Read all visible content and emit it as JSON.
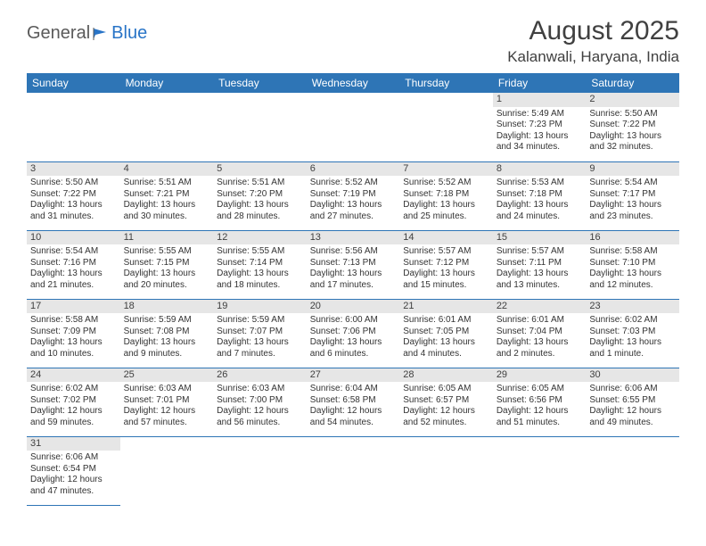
{
  "logo": {
    "part1": "General",
    "part2": "Blue"
  },
  "title": "August 2025",
  "location": "Kalanwali, Haryana, India",
  "colors": {
    "header_bg": "#2e75b6",
    "header_text": "#ffffff",
    "daynum_bg": "#e6e6e6",
    "text": "#333333",
    "logo_gray": "#5a5a5a",
    "logo_blue": "#2874c7",
    "border": "#2e75b6",
    "page_bg": "#ffffff"
  },
  "typography": {
    "title_fontsize": 30,
    "location_fontsize": 17,
    "header_fontsize": 12,
    "cell_fontsize": 10
  },
  "weekdays": [
    "Sunday",
    "Monday",
    "Tuesday",
    "Wednesday",
    "Thursday",
    "Friday",
    "Saturday"
  ],
  "weeks": [
    [
      null,
      null,
      null,
      null,
      null,
      {
        "n": "1",
        "sr": "5:49 AM",
        "ss": "7:23 PM",
        "dl": "13 hours and 34 minutes."
      },
      {
        "n": "2",
        "sr": "5:50 AM",
        "ss": "7:22 PM",
        "dl": "13 hours and 32 minutes."
      }
    ],
    [
      {
        "n": "3",
        "sr": "5:50 AM",
        "ss": "7:22 PM",
        "dl": "13 hours and 31 minutes."
      },
      {
        "n": "4",
        "sr": "5:51 AM",
        "ss": "7:21 PM",
        "dl": "13 hours and 30 minutes."
      },
      {
        "n": "5",
        "sr": "5:51 AM",
        "ss": "7:20 PM",
        "dl": "13 hours and 28 minutes."
      },
      {
        "n": "6",
        "sr": "5:52 AM",
        "ss": "7:19 PM",
        "dl": "13 hours and 27 minutes."
      },
      {
        "n": "7",
        "sr": "5:52 AM",
        "ss": "7:18 PM",
        "dl": "13 hours and 25 minutes."
      },
      {
        "n": "8",
        "sr": "5:53 AM",
        "ss": "7:18 PM",
        "dl": "13 hours and 24 minutes."
      },
      {
        "n": "9",
        "sr": "5:54 AM",
        "ss": "7:17 PM",
        "dl": "13 hours and 23 minutes."
      }
    ],
    [
      {
        "n": "10",
        "sr": "5:54 AM",
        "ss": "7:16 PM",
        "dl": "13 hours and 21 minutes."
      },
      {
        "n": "11",
        "sr": "5:55 AM",
        "ss": "7:15 PM",
        "dl": "13 hours and 20 minutes."
      },
      {
        "n": "12",
        "sr": "5:55 AM",
        "ss": "7:14 PM",
        "dl": "13 hours and 18 minutes."
      },
      {
        "n": "13",
        "sr": "5:56 AM",
        "ss": "7:13 PM",
        "dl": "13 hours and 17 minutes."
      },
      {
        "n": "14",
        "sr": "5:57 AM",
        "ss": "7:12 PM",
        "dl": "13 hours and 15 minutes."
      },
      {
        "n": "15",
        "sr": "5:57 AM",
        "ss": "7:11 PM",
        "dl": "13 hours and 13 minutes."
      },
      {
        "n": "16",
        "sr": "5:58 AM",
        "ss": "7:10 PM",
        "dl": "13 hours and 12 minutes."
      }
    ],
    [
      {
        "n": "17",
        "sr": "5:58 AM",
        "ss": "7:09 PM",
        "dl": "13 hours and 10 minutes."
      },
      {
        "n": "18",
        "sr": "5:59 AM",
        "ss": "7:08 PM",
        "dl": "13 hours and 9 minutes."
      },
      {
        "n": "19",
        "sr": "5:59 AM",
        "ss": "7:07 PM",
        "dl": "13 hours and 7 minutes."
      },
      {
        "n": "20",
        "sr": "6:00 AM",
        "ss": "7:06 PM",
        "dl": "13 hours and 6 minutes."
      },
      {
        "n": "21",
        "sr": "6:01 AM",
        "ss": "7:05 PM",
        "dl": "13 hours and 4 minutes."
      },
      {
        "n": "22",
        "sr": "6:01 AM",
        "ss": "7:04 PM",
        "dl": "13 hours and 2 minutes."
      },
      {
        "n": "23",
        "sr": "6:02 AM",
        "ss": "7:03 PM",
        "dl": "13 hours and 1 minute."
      }
    ],
    [
      {
        "n": "24",
        "sr": "6:02 AM",
        "ss": "7:02 PM",
        "dl": "12 hours and 59 minutes."
      },
      {
        "n": "25",
        "sr": "6:03 AM",
        "ss": "7:01 PM",
        "dl": "12 hours and 57 minutes."
      },
      {
        "n": "26",
        "sr": "6:03 AM",
        "ss": "7:00 PM",
        "dl": "12 hours and 56 minutes."
      },
      {
        "n": "27",
        "sr": "6:04 AM",
        "ss": "6:58 PM",
        "dl": "12 hours and 54 minutes."
      },
      {
        "n": "28",
        "sr": "6:05 AM",
        "ss": "6:57 PM",
        "dl": "12 hours and 52 minutes."
      },
      {
        "n": "29",
        "sr": "6:05 AM",
        "ss": "6:56 PM",
        "dl": "12 hours and 51 minutes."
      },
      {
        "n": "30",
        "sr": "6:06 AM",
        "ss": "6:55 PM",
        "dl": "12 hours and 49 minutes."
      }
    ],
    [
      {
        "n": "31",
        "sr": "6:06 AM",
        "ss": "6:54 PM",
        "dl": "12 hours and 47 minutes."
      },
      null,
      null,
      null,
      null,
      null,
      null
    ]
  ],
  "labels": {
    "sunrise": "Sunrise:",
    "sunset": "Sunset:",
    "daylight": "Daylight:"
  }
}
